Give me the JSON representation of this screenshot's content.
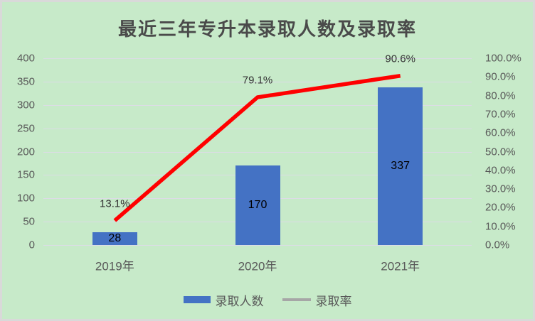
{
  "chart_data": {
    "type": "bar+line combo",
    "title": "最近三年专升本录取人数及录取率",
    "categories": [
      "2019年",
      "2020年",
      "2021年"
    ],
    "series": [
      {
        "name": "录取人数",
        "type": "bar",
        "axis": "left",
        "values": [
          28,
          170,
          337
        ],
        "data_labels": [
          "28",
          "170",
          "337"
        ],
        "color": "#4472C4"
      },
      {
        "name": "录取率",
        "type": "line",
        "axis": "right",
        "values_pct": [
          13.1,
          79.1,
          90.6
        ],
        "data_labels": [
          "13.1%",
          "79.1%",
          "90.6%"
        ],
        "line_color": "#FF0000",
        "legend_swatch_color": "#A6A6A6"
      }
    ],
    "left_axis": {
      "min": 0,
      "max": 400,
      "step": 50,
      "ticks": [
        "400",
        "350",
        "300",
        "250",
        "200",
        "150",
        "100",
        "50",
        "0"
      ]
    },
    "right_axis": {
      "min": 0,
      "max": 100,
      "step": 10,
      "ticks": [
        "100.0%",
        "90.0%",
        "80.0%",
        "70.0%",
        "60.0%",
        "50.0%",
        "40.0%",
        "30.0%",
        "20.0%",
        "10.0%",
        "0.0%"
      ]
    },
    "grid": true,
    "legend_position": "bottom"
  },
  "colors": {
    "background": "#C7EAC9",
    "frame_border": "#D9D9D9",
    "gridline": "#DCDCE6",
    "bar": "#4472C4",
    "line": "#FF0000",
    "legend_line_swatch": "#A6A6A6",
    "axis_text": "#595959",
    "title_text": "#4A4A4A",
    "bar_label_text": "#000000"
  }
}
